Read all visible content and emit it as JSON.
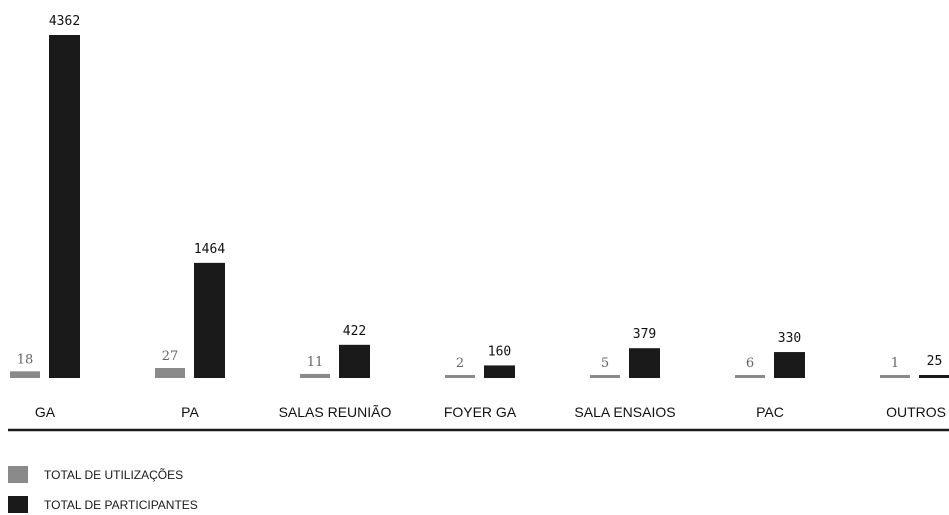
{
  "chart_data": {
    "type": "bar",
    "categories": [
      "GA",
      "PA",
      "SALAS REUNIÃO",
      "FOYER GA",
      "SALA ENSAIOS",
      "PAC",
      "OUTROS"
    ],
    "series": [
      {
        "name": "TOTAL DE UTILIZAÇÕES",
        "values": [
          18,
          27,
          11,
          2,
          5,
          6,
          1
        ],
        "color": "#8a8a8a"
      },
      {
        "name": "TOTAL DE PARTICIPANTES",
        "values": [
          4362,
          1464,
          422,
          160,
          379,
          330,
          25
        ],
        "color": "#1a1a1a"
      }
    ],
    "legend_position": "bottom-left",
    "grid": false
  }
}
